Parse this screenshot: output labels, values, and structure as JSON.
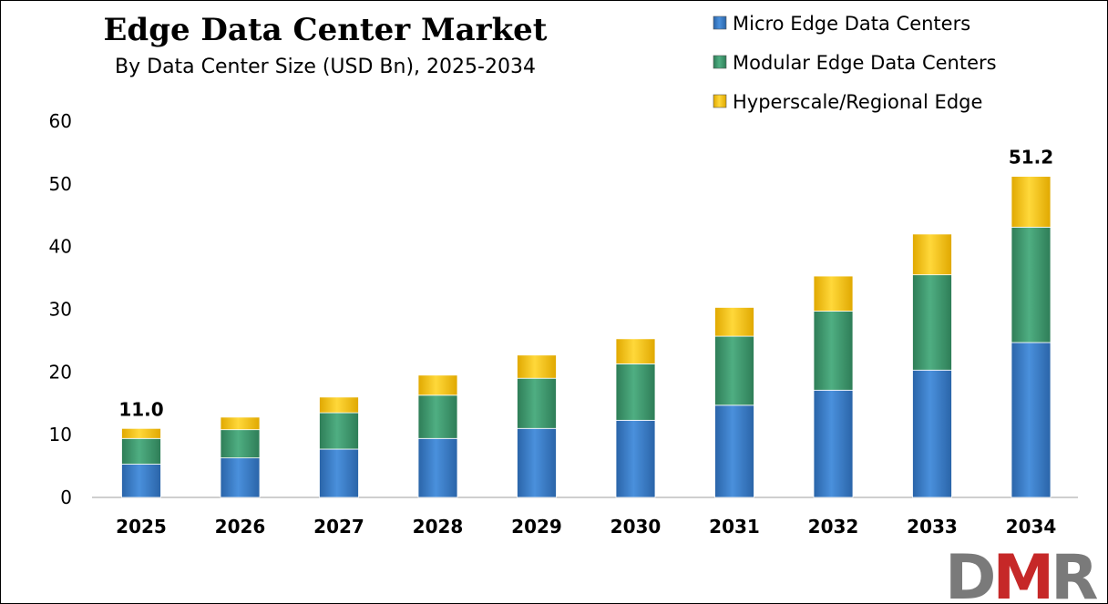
{
  "chart_data": {
    "type": "bar",
    "stacked": true,
    "title": "Edge Data Center Market",
    "subtitle": "By Data Center Size (USD Bn), 2025-2034",
    "xlabel": "",
    "ylabel": "",
    "categories": [
      "2025",
      "2026",
      "2027",
      "2028",
      "2029",
      "2030",
      "2031",
      "2032",
      "2033",
      "2034"
    ],
    "series": [
      {
        "name": "Micro Edge Data Centers",
        "color": "#3a7dc9",
        "values": [
          5.3,
          6.3,
          7.7,
          9.4,
          11.0,
          12.3,
          14.7,
          17.1,
          20.3,
          24.7
        ]
      },
      {
        "name": "Modular Edge Data Centers",
        "color": "#3f9c72",
        "values": [
          4.1,
          4.5,
          5.8,
          6.9,
          8.0,
          9.0,
          11.0,
          12.6,
          15.2,
          18.4
        ]
      },
      {
        "name": "Hyperscale/Regional Edge",
        "color": "#f5c400",
        "values": [
          1.6,
          2.0,
          2.5,
          3.2,
          3.7,
          4.0,
          4.6,
          5.6,
          6.5,
          8.1
        ]
      }
    ],
    "data_labels": [
      {
        "category": "2025",
        "text": "11.0"
      },
      {
        "category": "2034",
        "text": "51.2"
      }
    ],
    "ylim": [
      0,
      60
    ],
    "yticks": [
      "0",
      "10",
      "20",
      "30",
      "40",
      "50",
      "60"
    ],
    "grid": false,
    "legend_position": "top-right"
  },
  "logo": {
    "text": "DMR",
    "color_d": "#7a7a7a",
    "color_m": "#c62828",
    "color_r": "#7a7a7a"
  }
}
